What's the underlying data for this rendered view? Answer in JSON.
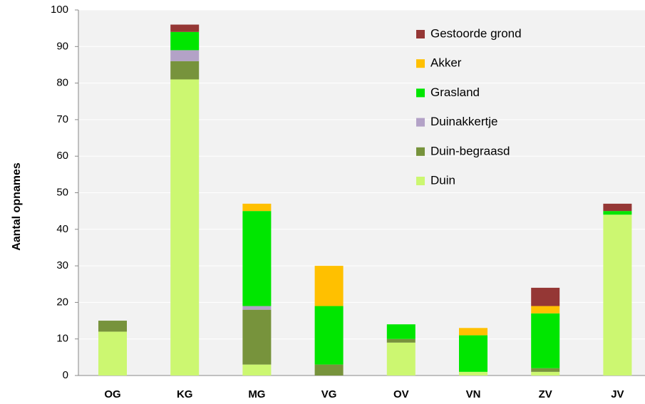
{
  "chart_data": {
    "type": "stacked_bar",
    "ylabel": "Aantal opnames",
    "categories": [
      "OG",
      "KG",
      "MG",
      "VG",
      "OV",
      "VN",
      "ZV",
      "JV"
    ],
    "series": [
      {
        "name": "Duin",
        "color": "#ccf771",
        "values": [
          12,
          81,
          3,
          0,
          9,
          1,
          1,
          44
        ]
      },
      {
        "name": "Duin-begraasd",
        "color": "#77933c",
        "values": [
          3,
          5,
          15,
          3,
          1,
          0,
          1,
          0
        ]
      },
      {
        "name": "Duinakkertje",
        "color": "#b3a2c7",
        "values": [
          0,
          3,
          1,
          0,
          0,
          0,
          0,
          0
        ]
      },
      {
        "name": "Grasland",
        "color": "#00e600",
        "values": [
          0,
          5,
          26,
          16,
          4,
          10,
          15,
          1
        ]
      },
      {
        "name": "Akker",
        "color": "#ffc000",
        "values": [
          0,
          0,
          2,
          11,
          0,
          2,
          2,
          0
        ]
      },
      {
        "name": "Gestoorde grond",
        "color": "#953735",
        "values": [
          0,
          2,
          0,
          0,
          0,
          0,
          5,
          2
        ]
      }
    ],
    "ylim": [
      0,
      100
    ],
    "yticks": [
      0,
      10,
      20,
      30,
      40,
      50,
      60,
      70,
      80,
      90,
      100
    ],
    "grid": true,
    "legend": "upper right"
  }
}
